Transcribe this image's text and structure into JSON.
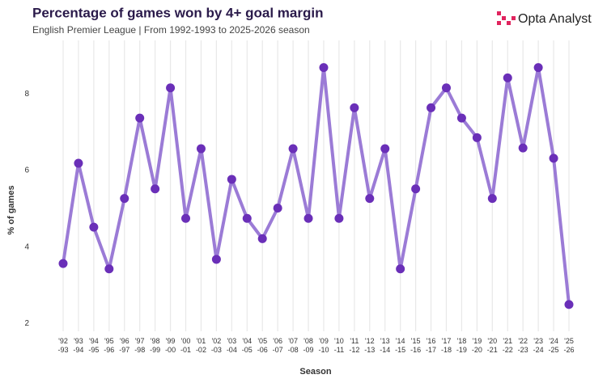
{
  "chart_data": {
    "type": "line",
    "title": "Percentage of games won by 4+ goal margin",
    "subtitle": "English Premier League | From 1992-1993 to 2025-2026 season",
    "brand": "Opta Analyst",
    "x_label": "Season",
    "y_label": "% of games",
    "categories": [
      "'92\n-93",
      "'93\n-94",
      "'94\n-95",
      "'95\n-96",
      "'96\n-97",
      "'97\n-98",
      "'98\n-99",
      "'99\n-00",
      "'00\n-01",
      "'01\n-02",
      "'02\n-03",
      "'03\n-04",
      "'04\n-05",
      "'05\n-06",
      "'06\n-07",
      "'07\n-08",
      "'08\n-09",
      "'09\n-10",
      "'10\n-11",
      "'11\n-12",
      "'12\n-13",
      "'13\n-14",
      "'14\n-15",
      "'15\n-16",
      "'16\n-17",
      "'17\n-18",
      "'18\n-19",
      "'19\n-20",
      "'20\n-21",
      "'21\n-22",
      "'22\n-23",
      "'23\n-24",
      "'24\n-25",
      "'25\n-26"
    ],
    "values": [
      3.57,
      6.19,
      4.52,
      3.43,
      5.27,
      7.37,
      5.52,
      8.16,
      4.75,
      6.57,
      3.68,
      5.77,
      4.75,
      4.22,
      5.02,
      6.57,
      4.75,
      8.69,
      4.75,
      7.64,
      5.27,
      6.57,
      3.43,
      5.52,
      7.64,
      8.16,
      7.37,
      6.86,
      5.27,
      8.42,
      6.59,
      8.69,
      6.32,
      2.5
    ],
    "color": "#9b7bd6",
    "marker_color": "#6a2fb8",
    "ylim": [
      1.8,
      9.4
    ],
    "yticks": [
      2,
      4,
      6,
      8
    ],
    "grid": "x"
  }
}
